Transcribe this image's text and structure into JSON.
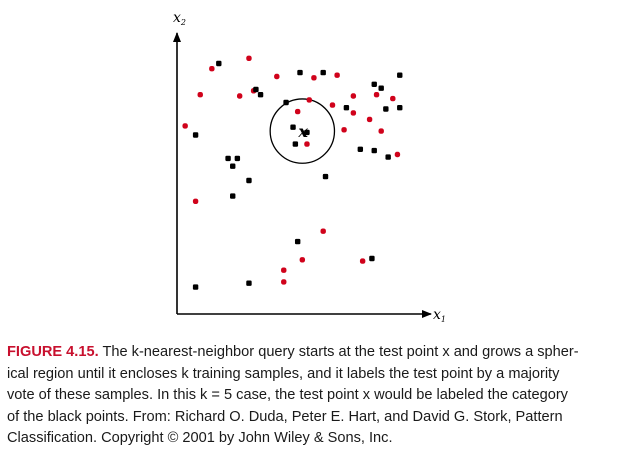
{
  "chart_data": {
    "type": "scatter",
    "xlabel": "x",
    "xlabel_sub": "1",
    "ylabel": "x",
    "ylabel_sub": "2",
    "xlim": [
      0,
      100
    ],
    "ylim": [
      0,
      100
    ],
    "grid": false,
    "test_point": {
      "label": "x",
      "x": 51,
      "y": 66.5,
      "circle_radius": 10.5
    },
    "series": [
      {
        "color": "#d0021b",
        "points": [
          [
            12,
            90.5
          ],
          [
            28,
            94.5
          ],
          [
            40,
            87.5
          ],
          [
            56,
            87
          ],
          [
            66,
            88
          ],
          [
            7,
            80.5
          ],
          [
            30,
            82
          ],
          [
            24,
            80
          ],
          [
            54,
            78.5
          ],
          [
            64,
            76.5
          ],
          [
            73,
            80
          ],
          [
            83,
            80.5
          ],
          [
            90,
            79
          ],
          [
            73,
            73.5
          ],
          [
            80,
            71
          ],
          [
            0.5,
            68.5
          ],
          [
            69,
            67
          ],
          [
            85,
            66.5
          ],
          [
            49,
            74
          ],
          [
            53,
            61.5
          ],
          [
            92,
            57.5
          ],
          [
            5,
            39.5
          ],
          [
            60,
            28
          ],
          [
            51,
            17
          ],
          [
            77,
            16.5
          ],
          [
            43,
            13
          ],
          [
            43,
            8.5
          ]
        ]
      },
      {
        "color": "#000000",
        "points": [
          [
            15,
            92.5
          ],
          [
            50,
            89
          ],
          [
            60,
            89
          ],
          [
            44,
            77.5
          ],
          [
            33,
            80.5
          ],
          [
            31,
            82.5
          ],
          [
            82,
            84.5
          ],
          [
            85,
            83
          ],
          [
            93,
            88
          ],
          [
            93,
            75.5
          ],
          [
            87,
            75
          ],
          [
            70,
            75.5
          ],
          [
            5,
            65
          ],
          [
            19,
            56
          ],
          [
            23,
            56
          ],
          [
            21,
            53
          ],
          [
            47,
            68
          ],
          [
            53,
            66
          ],
          [
            48,
            61.5
          ],
          [
            82,
            59
          ],
          [
            88,
            56.5
          ],
          [
            76,
            59.5
          ],
          [
            28,
            47.5
          ],
          [
            21,
            41.5
          ],
          [
            61,
            49
          ],
          [
            5,
            6.5
          ],
          [
            28,
            8
          ],
          [
            49,
            24
          ],
          [
            81,
            17.5
          ]
        ]
      }
    ]
  },
  "caption": {
    "label": "FIGURE 4.15.",
    "lines": [
      "The k-nearest-neighbor query starts at the test point x and grows a spher-",
      "ical region until it encloses k training samples, and it labels the test point by a majority",
      "vote of these samples. In this k = 5 case, the test point x would be labeled the category",
      "of the black points. From: Richard O. Duda, Peter E. Hart, and David G. Stork, Pattern",
      "Classification. Copyright © 2001 by John Wiley & Sons, Inc."
    ]
  }
}
